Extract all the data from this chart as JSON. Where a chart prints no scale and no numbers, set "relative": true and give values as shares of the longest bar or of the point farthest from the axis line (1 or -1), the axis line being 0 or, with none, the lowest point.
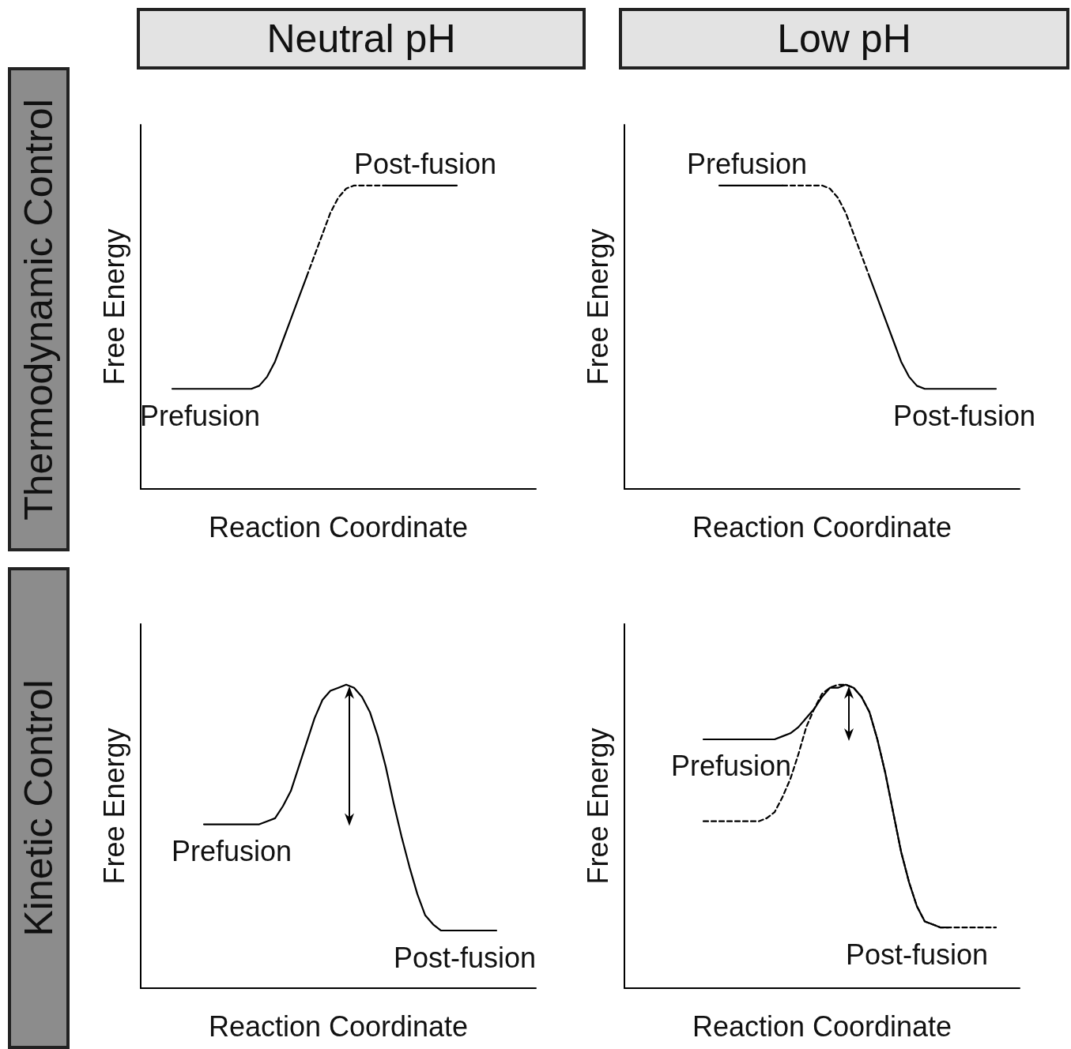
{
  "chart_data": [
    {
      "type": "line",
      "title": "Neutral pH",
      "xlabel": "Reaction Coordinate",
      "ylabel": "Free Energy",
      "relative": true,
      "marker": "none",
      "subtitle": "Thermodynamic Control",
      "annotations": [
        "Prefusion",
        "Post-fusion"
      ],
      "categories": [
        null,
        null,
        null,
        null,
        null,
        null,
        null,
        null,
        null,
        null,
        null,
        null,
        null,
        null,
        null,
        null,
        null,
        null,
        null,
        null,
        null,
        null,
        null,
        null,
        null,
        null,
        null,
        null,
        null,
        null,
        null,
        null,
        null,
        null,
        null,
        null,
        null,
        null,
        null,
        null,
        null,
        null,
        null,
        null,
        null,
        null,
        null,
        null,
        null,
        null,
        null
      ],
      "series": [
        {
          "color": "#000000",
          "line_style": "solid",
          "values": [
            null,
            null,
            null,
            null,
            0.33,
            0.33,
            0.33,
            0.33,
            0.33,
            0.33,
            0.33,
            0.33,
            0.33,
            0.33,
            0.33,
            0.34,
            0.37,
            0.42,
            0.49,
            0.56,
            0.63,
            0.7,
            null,
            null,
            null,
            null,
            null,
            null,
            null,
            null,
            null,
            1,
            1,
            1,
            1,
            1,
            1,
            1,
            1,
            1,
            1,
            null,
            null,
            null,
            null,
            null,
            null,
            null,
            null,
            null,
            null
          ]
        },
        {
          "color": "#000000",
          "line_style": "dashed",
          "values": [
            null,
            null,
            null,
            null,
            null,
            null,
            null,
            null,
            null,
            null,
            null,
            null,
            null,
            null,
            null,
            null,
            null,
            null,
            null,
            null,
            null,
            0.7,
            0.77,
            0.84,
            0.91,
            0.96,
            0.99,
            1,
            1,
            1,
            1,
            1,
            null,
            null,
            null,
            null,
            null,
            null,
            null,
            null,
            null,
            null,
            null,
            null,
            null,
            null,
            null,
            null,
            null,
            null,
            null
          ]
        }
      ]
    },
    {
      "type": "line",
      "title": "Low pH",
      "xlabel": "Reaction Coordinate",
      "ylabel": "Free Energy",
      "relative": true,
      "marker": "none",
      "annotations": [
        "Prefusion",
        "Post-fusion"
      ],
      "categories": [
        null,
        null,
        null,
        null,
        null,
        null,
        null,
        null,
        null,
        null,
        null,
        null,
        null,
        null,
        null,
        null,
        null,
        null,
        null,
        null,
        null,
        null,
        null,
        null,
        null,
        null,
        null,
        null,
        null,
        null,
        null,
        null,
        null,
        null,
        null,
        null,
        null,
        null,
        null,
        null,
        null,
        null,
        null,
        null,
        null,
        null,
        null,
        null,
        null,
        null,
        null
      ],
      "series": [
        {
          "color": "#000000",
          "line_style": "solid",
          "values": [
            null,
            null,
            null,
            null,
            null,
            null,
            null,
            null,
            null,
            null,
            null,
            null,
            1,
            1,
            1,
            1,
            1,
            1,
            1,
            1,
            1,
            null,
            null,
            null,
            null,
            null,
            null,
            null,
            null,
            null,
            null,
            0.7,
            0.63,
            0.56,
            0.49,
            0.42,
            0.37,
            0.34,
            0.33,
            0.33,
            0.33,
            0.33,
            0.33,
            0.33,
            0.33,
            0.33,
            0.33,
            0.33,
            null,
            null,
            null
          ]
        },
        {
          "color": "#000000",
          "line_style": "dashed",
          "values": [
            null,
            null,
            null,
            null,
            null,
            null,
            null,
            null,
            null,
            null,
            null,
            null,
            null,
            null,
            null,
            null,
            null,
            null,
            null,
            null,
            1,
            1,
            1,
            1,
            1,
            1,
            0.99,
            0.96,
            0.91,
            0.84,
            0.77,
            0.7,
            null,
            null,
            null,
            null,
            null,
            null,
            null,
            null,
            null,
            null,
            null,
            null,
            null,
            null,
            null,
            null,
            null,
            null,
            null
          ]
        }
      ]
    },
    {
      "type": "line",
      "xlabel": "Reaction Coordinate",
      "ylabel": "Free Energy",
      "relative": true,
      "marker": "none",
      "subtitle": "Kinetic Control",
      "annotations": [
        "Prefusion",
        "Post-fusion"
      ],
      "categories": [
        null,
        null,
        null,
        null,
        null,
        null,
        null,
        null,
        null,
        null,
        null,
        null,
        null,
        null,
        null,
        null,
        null,
        null,
        null,
        null,
        null,
        null,
        null,
        null,
        null,
        null,
        null,
        null,
        null,
        null,
        null,
        null,
        null,
        null,
        null,
        null,
        null,
        null,
        null,
        null,
        null,
        null,
        null,
        null,
        null,
        null,
        null,
        null,
        null,
        null,
        null
      ],
      "series": [
        {
          "color": "#000000",
          "line_style": "solid",
          "values": [
            null,
            null,
            null,
            null,
            null,
            null,
            null,
            null,
            0.54,
            0.54,
            0.54,
            0.54,
            0.54,
            0.54,
            0.54,
            0.54,
            0.55,
            0.56,
            0.6,
            0.65,
            0.73,
            0.81,
            0.89,
            0.95,
            0.98,
            0.99,
            1,
            0.99,
            0.96,
            0.91,
            0.83,
            0.73,
            0.61,
            0.5,
            0.4,
            0.31,
            0.24,
            0.21,
            0.19,
            0.19,
            0.19,
            0.19,
            0.19,
            0.19,
            0.19,
            0.19,
            null,
            null,
            null,
            null,
            null
          ]
        }
      ]
    },
    {
      "type": "line",
      "xlabel": "Reaction Coordinate",
      "ylabel": "Free Energy",
      "relative": true,
      "marker": "none",
      "annotations": [
        "Prefusion",
        "Post-fusion"
      ],
      "categories": [
        null,
        null,
        null,
        null,
        null,
        null,
        null,
        null,
        null,
        null,
        null,
        null,
        null,
        null,
        null,
        null,
        null,
        null,
        null,
        null,
        null,
        null,
        null,
        null,
        null,
        null,
        null,
        null,
        null,
        null,
        null,
        null,
        null,
        null,
        null,
        null,
        null,
        null,
        null,
        null,
        null,
        null,
        null,
        null,
        null,
        null,
        null,
        null,
        null,
        null,
        null
      ],
      "series": [
        {
          "color": "#000000",
          "line_style": "solid",
          "values": [
            null,
            null,
            null,
            null,
            null,
            null,
            null,
            null,
            null,
            null,
            0.82,
            0.82,
            0.82,
            0.82,
            0.82,
            0.82,
            0.82,
            0.82,
            0.82,
            0.82,
            0.83,
            0.84,
            0.86,
            0.89,
            0.92,
            0.96,
            0.99,
            0.99,
            1,
            0.99,
            0.96,
            0.91,
            0.82,
            0.71,
            0.58,
            0.45,
            0.35,
            0.27,
            0.22,
            0.21,
            0.2,
            0.2,
            null,
            null,
            null,
            null,
            null,
            null,
            null,
            null,
            null
          ]
        },
        {
          "color": "#000000",
          "line_style": "dashed",
          "values": [
            null,
            null,
            null,
            null,
            null,
            null,
            null,
            null,
            null,
            null,
            0.55,
            0.55,
            0.55,
            0.55,
            0.55,
            0.55,
            0.55,
            0.55,
            0.56,
            0.58,
            0.63,
            0.69,
            0.77,
            0.86,
            0.92,
            0.97,
            0.99,
            1,
            1,
            0.99,
            0.96,
            0.91,
            0.82,
            0.71,
            0.58,
            0.45,
            0.35,
            0.27,
            0.22,
            0.21,
            0.2,
            0.2,
            0.2,
            0.2,
            0.2,
            0.2,
            0.2,
            0.2,
            null,
            null,
            null
          ]
        }
      ]
    }
  ]
}
